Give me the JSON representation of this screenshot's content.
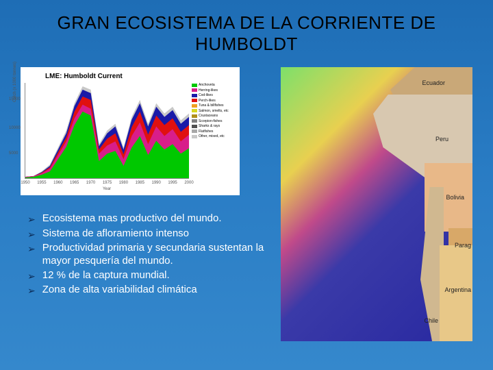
{
  "title": "GRAN ECOSISTEMA DE LA CORRIENTE DE HUMBOLDT",
  "chart": {
    "title": "LME: Humboldt Current",
    "ylabel": "Catch (x 1000 tonnes)",
    "xlabel": "Year",
    "xticks": [
      "1950",
      "1955",
      "1960",
      "1965",
      "1970",
      "1975",
      "1980",
      "1985",
      "1990",
      "1995",
      "2000"
    ],
    "yticks": [
      "15000",
      "10000",
      "5000"
    ],
    "ytick_positions": [
      15,
      45,
      72
    ],
    "background_color": "#ffffff",
    "series_colors": {
      "anchoveta": "#00c800",
      "herring": "#d81e8a",
      "cod": "#1a1aa8",
      "perch": "#e01010",
      "tuna": "#f0a020",
      "salmon": "#d8d820",
      "crustacea": "#b0901a",
      "scorpion": "#808080",
      "shark": "#505050",
      "flatfish": "#a8a8a8",
      "other": "#c8c8c8"
    },
    "legend": [
      {
        "label": "Anchoveta",
        "color": "#00c800"
      },
      {
        "label": "Herring-likes",
        "color": "#d81e8a"
      },
      {
        "label": "Cod-likes",
        "color": "#1a1aa8"
      },
      {
        "label": "Perch-likes",
        "color": "#e01010"
      },
      {
        "label": "Tuna & billfishes",
        "color": "#f0a020"
      },
      {
        "label": "Salmon, smelts, etc",
        "color": "#d8d820"
      },
      {
        "label": "Crustaceans",
        "color": "#b0901a"
      },
      {
        "label": "Scorpion-fishes",
        "color": "#808080"
      },
      {
        "label": "Sharks & rays",
        "color": "#505050"
      },
      {
        "label": "Flatfishes",
        "color": "#a8a8a8"
      },
      {
        "label": "Other, mixed, etc",
        "color": "#c8c8c8"
      }
    ]
  },
  "bullets": [
    "Ecosistema mas productivo del mundo.",
    "Sistema de afloramiento intenso",
    "Productividad primaria y secundaria sustentan la mayor pesquería del mundo.",
    "12 % de la captura mundial.",
    "Zona de alta variabilidad climática"
  ],
  "map": {
    "countries": [
      "Ecuador",
      "Peru",
      "Bolivia",
      "Parag",
      "Argentina",
      "Chile"
    ],
    "land_color_ecuador": "#c9a878",
    "land_color_peru": "#d8c8b0",
    "land_color_bolivia": "#e8b888",
    "land_color_argentina": "#e8c888",
    "land_color_chile": "#d0b890",
    "land_color_parag": "#d8a868"
  }
}
